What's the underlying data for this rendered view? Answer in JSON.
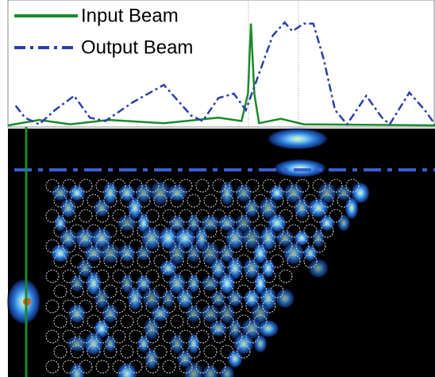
{
  "chart_data": {
    "type": "line",
    "xlim": [
      0,
      100
    ],
    "ylim": [
      0,
      1
    ],
    "legend": "upper left",
    "series": [
      {
        "name": "Input Beam",
        "color": "#1a8a2a",
        "dash": "solid",
        "x": [
          0,
          7.3,
          14.6,
          23.7,
          36.5,
          49.3,
          54.7,
          56.2,
          56.9,
          57.7,
          58.8,
          63.9,
          69.3,
          100
        ],
        "values": [
          0,
          0.05,
          0.01,
          0.05,
          0.02,
          0.07,
          0.04,
          0.29,
          0.93,
          0.29,
          0.02,
          0.06,
          0.01,
          0
        ]
      },
      {
        "name": "Output Beam",
        "color": "#2b3fa8",
        "dash": "dashdot",
        "x": [
          1.8,
          4,
          7.3,
          11,
          15.5,
          19.2,
          22.8,
          29.2,
          36.5,
          42.9,
          45.6,
          49.3,
          52.9,
          55.7,
          58.4,
          62,
          64.8,
          66.6,
          69.3,
          71.5,
          73.9,
          76.6,
          79.4,
          83.9,
          87.6,
          89.4,
          94,
          97.6,
          100
        ],
        "values": [
          0.18,
          0.07,
          0.01,
          0.14,
          0.27,
          0.07,
          0.04,
          0.21,
          0.37,
          0.09,
          0.04,
          0.25,
          0.29,
          0.14,
          0.43,
          0.82,
          0.94,
          0.86,
          0.93,
          0.93,
          0.61,
          0.14,
          0.01,
          0.27,
          0.07,
          0.01,
          0.3,
          0.14,
          0.01
        ]
      }
    ]
  }
}
